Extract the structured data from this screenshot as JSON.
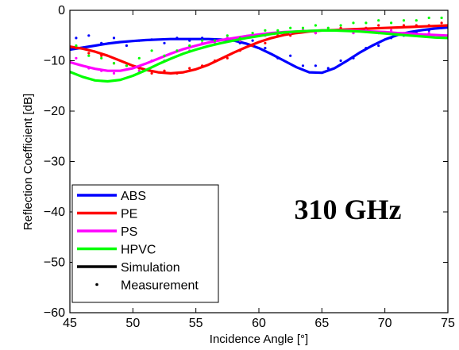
{
  "chart_data": {
    "type": "line",
    "title": "",
    "xlabel": "Incidence Angle [°]",
    "ylabel": "Reflection Coefficient [dB]",
    "xlim": [
      45,
      75
    ],
    "ylim": [
      -60,
      0
    ],
    "xticks": [
      45,
      50,
      55,
      60,
      65,
      70,
      75
    ],
    "yticks": [
      0,
      -10,
      -20,
      -30,
      -40,
      -50,
      -60
    ],
    "grid": false,
    "legend_position": "bottom-left",
    "annotation": "310 GHz",
    "legend": [
      {
        "label": "ABS",
        "color": "#0000ff",
        "kind": "line"
      },
      {
        "label": "PE",
        "color": "#ff0000",
        "kind": "line"
      },
      {
        "label": "PS",
        "color": "#ff00ff",
        "kind": "line"
      },
      {
        "label": "HPVC",
        "color": "#00ff00",
        "kind": "line"
      },
      {
        "label": "Simulation",
        "color": "#000000",
        "kind": "line"
      },
      {
        "label": "Measurement",
        "color": "#000000",
        "kind": "dot"
      }
    ],
    "series": [
      {
        "name": "ABS",
        "color": "#0000ff",
        "simulation": {
          "x": [
            45,
            46,
            47,
            48,
            49,
            50,
            51,
            52,
            53,
            54,
            55,
            56,
            57,
            58,
            59,
            60,
            61,
            62,
            63,
            64,
            65,
            66,
            67,
            68,
            69,
            70,
            71,
            72,
            73,
            74,
            75
          ],
          "y": [
            -7.8,
            -7.4,
            -7.0,
            -6.6,
            -6.3,
            -6.1,
            -5.9,
            -5.8,
            -5.7,
            -5.7,
            -5.7,
            -5.7,
            -5.8,
            -6.0,
            -6.6,
            -7.5,
            -8.7,
            -10.0,
            -11.3,
            -12.3,
            -12.4,
            -11.5,
            -10.0,
            -8.4,
            -7.0,
            -5.8,
            -4.9,
            -4.3,
            -3.9,
            -3.6,
            -3.4
          ]
        },
        "measurement": {
          "x": [
            45.5,
            46.5,
            47.5,
            48.5,
            49.5,
            50.5,
            51.5,
            52.5,
            53.5,
            54.5,
            55.5,
            56.5,
            57.5,
            58.5,
            59.5,
            60.5,
            61.5,
            62.5,
            63.5,
            64.5,
            65.5,
            66.5,
            67.5,
            68.5,
            69.5,
            70.5,
            71.5,
            72.5,
            73.5,
            74.5
          ],
          "y": [
            -5.5,
            -5.0,
            -6.5,
            -5.5,
            -7.0,
            -6.0,
            -5.8,
            -6.5,
            -5.5,
            -6.0,
            -5.5,
            -6.0,
            -5.5,
            -6.5,
            -6.0,
            -7.5,
            -9.5,
            -9.0,
            -11.0,
            -11.0,
            -11.5,
            -10.0,
            -9.5,
            -7.5,
            -7.0,
            -5.5,
            -5.0,
            -4.5,
            -4.0,
            -3.5
          ]
        }
      },
      {
        "name": "PE",
        "color": "#ff0000",
        "simulation": {
          "x": [
            45,
            46,
            47,
            48,
            49,
            50,
            51,
            52,
            53,
            54,
            55,
            56,
            57,
            58,
            59,
            60,
            61,
            62,
            63,
            64,
            65,
            66,
            67,
            68,
            69,
            70,
            71,
            72,
            73,
            74,
            75
          ],
          "y": [
            -7.2,
            -7.6,
            -8.2,
            -9.0,
            -10.0,
            -11.0,
            -11.8,
            -12.3,
            -12.5,
            -12.3,
            -11.7,
            -10.8,
            -9.6,
            -8.4,
            -7.3,
            -6.3,
            -5.5,
            -4.9,
            -4.5,
            -4.2,
            -4.0,
            -3.9,
            -3.8,
            -3.7,
            -3.6,
            -3.5,
            -3.4,
            -3.3,
            -3.2,
            -3.1,
            -3.0
          ]
        },
        "measurement": {
          "x": [
            45.5,
            46.5,
            47.5,
            48.5,
            49.5,
            50.5,
            51.5,
            52.5,
            53.5,
            54.5,
            55.5,
            56.5,
            57.5,
            58.5,
            59.5,
            60.5,
            61.5,
            62.5,
            63.5,
            64.5,
            65.5,
            66.5,
            67.5,
            68.5,
            69.5,
            70.5,
            71.5,
            72.5,
            73.5,
            74.5
          ],
          "y": [
            -7.5,
            -8.5,
            -9.0,
            -10.5,
            -11.0,
            -11.5,
            -12.5,
            -12.0,
            -12.5,
            -11.5,
            -11.0,
            -10.0,
            -9.5,
            -8.0,
            -7.0,
            -6.5,
            -5.0,
            -5.0,
            -4.0,
            -4.5,
            -4.0,
            -3.5,
            -4.0,
            -3.5,
            -3.0,
            -3.5,
            -3.0,
            -3.0,
            -3.0,
            -2.5
          ]
        }
      },
      {
        "name": "PS",
        "color": "#ff00ff",
        "simulation": {
          "x": [
            45,
            46,
            47,
            48,
            49,
            50,
            51,
            52,
            53,
            54,
            55,
            56,
            57,
            58,
            59,
            60,
            61,
            62,
            63,
            64,
            65,
            66,
            67,
            68,
            69,
            70,
            71,
            72,
            73,
            74,
            75
          ],
          "y": [
            -10.3,
            -11.0,
            -11.6,
            -12.0,
            -12.0,
            -11.5,
            -10.6,
            -9.6,
            -8.6,
            -7.7,
            -7.0,
            -6.4,
            -5.9,
            -5.5,
            -5.1,
            -4.8,
            -4.5,
            -4.3,
            -4.2,
            -4.1,
            -4.0,
            -4.0,
            -4.0,
            -4.1,
            -4.2,
            -4.3,
            -4.5,
            -4.6,
            -4.8,
            -4.9,
            -5.0
          ]
        },
        "measurement": {
          "x": [
            45.5,
            46.5,
            47.5,
            48.5,
            49.5,
            50.5,
            51.5,
            52.5,
            53.5,
            54.5,
            55.5,
            56.5,
            57.5,
            58.5,
            59.5,
            60.5,
            61.5,
            62.5,
            63.5,
            64.5,
            65.5,
            66.5,
            67.5,
            68.5,
            69.5,
            70.5,
            71.5,
            72.5,
            73.5,
            74.5
          ],
          "y": [
            -9.5,
            -11.5,
            -12.0,
            -12.5,
            -11.0,
            -12.0,
            -10.0,
            -10.0,
            -8.0,
            -8.0,
            -6.5,
            -6.5,
            -5.5,
            -6.0,
            -5.0,
            -5.0,
            -4.5,
            -4.5,
            -4.0,
            -4.5,
            -4.0,
            -4.0,
            -4.5,
            -4.0,
            -4.5,
            -4.0,
            -4.5,
            -5.0,
            -4.5,
            -5.0
          ]
        }
      },
      {
        "name": "HPVC",
        "color": "#00ff00",
        "simulation": {
          "x": [
            45,
            46,
            47,
            48,
            49,
            50,
            51,
            52,
            53,
            54,
            55,
            56,
            57,
            58,
            59,
            60,
            61,
            62,
            63,
            64,
            65,
            66,
            67,
            68,
            69,
            70,
            71,
            72,
            73,
            74,
            75
          ],
          "y": [
            -12.2,
            -13.2,
            -13.9,
            -14.1,
            -13.8,
            -13.0,
            -11.9,
            -10.7,
            -9.6,
            -8.6,
            -7.8,
            -7.1,
            -6.5,
            -6.0,
            -5.5,
            -5.1,
            -4.7,
            -4.4,
            -4.2,
            -4.1,
            -4.0,
            -4.0,
            -4.1,
            -4.2,
            -4.4,
            -4.6,
            -4.8,
            -5.0,
            -5.2,
            -5.4,
            -5.5
          ]
        },
        "measurement": {
          "x": [
            45.5,
            46.5,
            47.5,
            48.5,
            49.5,
            50.5,
            51.5,
            52.5,
            53.5,
            54.5,
            55.5,
            56.5,
            57.5,
            58.5,
            59.5,
            60.5,
            61.5,
            62.5,
            63.5,
            64.5,
            65.5,
            66.5,
            67.5,
            68.5,
            69.5,
            70.5,
            71.5,
            72.5,
            73.5,
            74.5
          ],
          "y": [
            -7.0,
            -9.0,
            -9.5,
            -10.5,
            -11.0,
            -9.5,
            -8.0,
            -9.0,
            -8.0,
            -7.0,
            -6.0,
            -6.0,
            -5.0,
            -5.5,
            -4.5,
            -4.0,
            -4.0,
            -3.5,
            -3.5,
            -3.0,
            -3.5,
            -3.0,
            -2.5,
            -2.5,
            -2.0,
            -2.5,
            -2.0,
            -2.0,
            -1.5,
            -1.5
          ]
        }
      }
    ]
  }
}
